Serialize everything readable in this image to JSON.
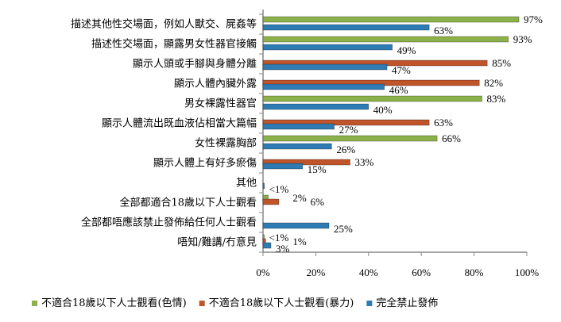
{
  "chart_data": {
    "type": "bar",
    "orientation": "horizontal",
    "categories": [
      "描述其他性交場面，例如人獸交、屍姦等",
      "描述性交場面，顯露男女性器官接觸",
      "顯示人頭或手腳與身體分離",
      "顯示人體內臟外露",
      "男女裸露性器官",
      "顯示人體流出既血液佔相當大篇幅",
      "女性裸露胸部",
      "顯示人體上有好多瘀傷",
      "其他",
      "全部都適合18歲以下人士觀看",
      "全部都唔應該禁止發佈給任何人士觀看",
      "唔知/難講/冇意見"
    ],
    "series": [
      {
        "name": "不適合18歲以下人士觀看(色情)",
        "color": "#8cb04a",
        "values": [
          97,
          93,
          null,
          null,
          83,
          null,
          66,
          null,
          null,
          2,
          null,
          0.5
        ],
        "labels": [
          "97%",
          "93%",
          null,
          null,
          "83%",
          null,
          "66%",
          null,
          null,
          "2%",
          null,
          "<1%"
        ]
      },
      {
        "name": "不適合18歲以下人士觀看(暴力)",
        "color": "#c0552b",
        "values": [
          null,
          null,
          85,
          82,
          null,
          63,
          null,
          33,
          null,
          6,
          null,
          1
        ],
        "labels": [
          null,
          null,
          "85%",
          "82%",
          null,
          "63%",
          null,
          "33%",
          null,
          "6%",
          null,
          "1%"
        ]
      },
      {
        "name": "完全禁止發佈",
        "color": "#2e7cb3",
        "values": [
          63,
          49,
          47,
          46,
          40,
          27,
          26,
          15,
          0.5,
          null,
          25,
          3
        ],
        "labels": [
          "63%",
          "49%",
          "47%",
          "46%",
          "40%",
          "27%",
          "26%",
          "15%",
          "<1%",
          null,
          "25%",
          "3%"
        ]
      }
    ],
    "xlim": [
      0,
      100
    ],
    "xticks": [
      "0%",
      "20%",
      "40%",
      "60%",
      "80%",
      "100%"
    ],
    "legend_position": "bottom"
  }
}
